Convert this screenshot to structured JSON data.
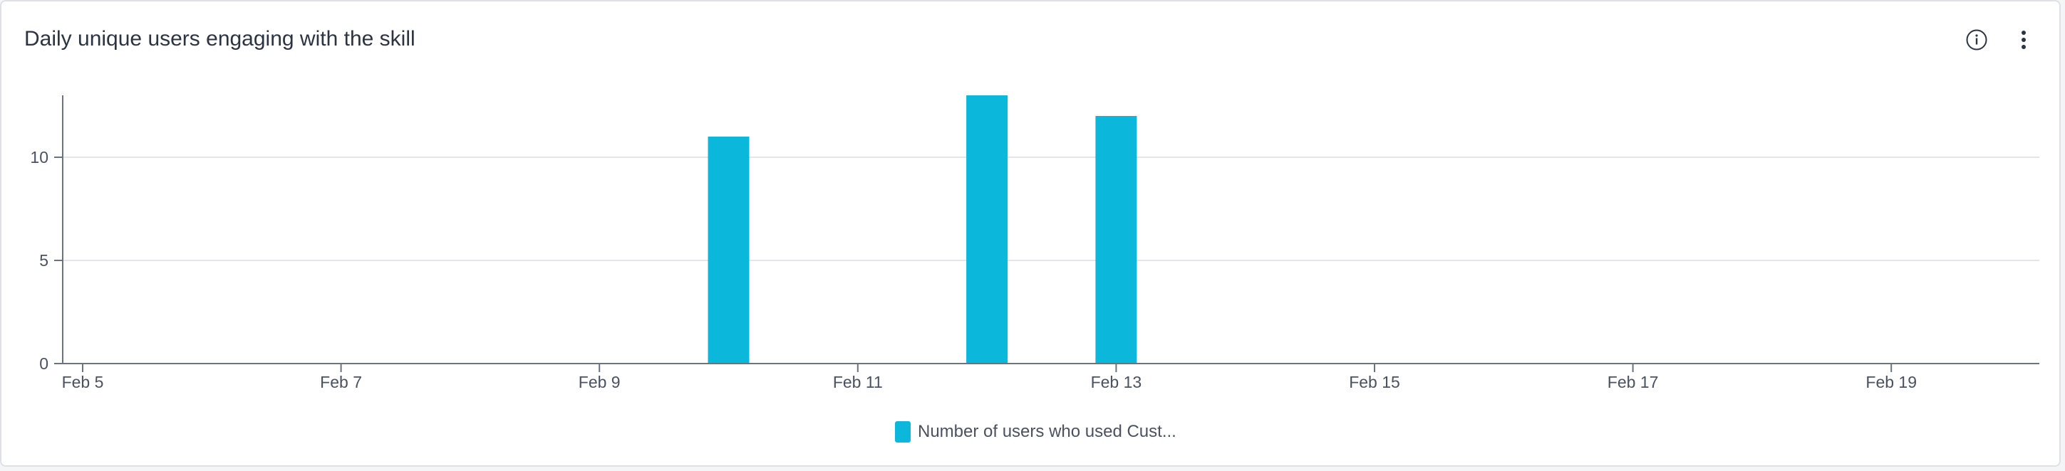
{
  "card": {
    "title": "Daily unique users engaging with the skill"
  },
  "icons": {
    "info": "info-circle-icon",
    "more": "vertical-ellipsis-icon"
  },
  "colors": {
    "bar": "#0bb8dc",
    "axis": "#6b7280",
    "grid": "#e3e5e8"
  },
  "chart_data": {
    "type": "bar",
    "title": "Daily unique users engaging with the skill",
    "xlabel": "",
    "ylabel": "",
    "x_tick_labels": [
      "Feb 5",
      "Feb 7",
      "Feb 9",
      "Feb 11",
      "Feb 13",
      "Feb 15",
      "Feb 17",
      "Feb 19"
    ],
    "y_ticks": [
      0,
      5,
      10
    ],
    "ylim": [
      0,
      13
    ],
    "xlim": [
      "Feb 5",
      "Feb 20"
    ],
    "grid": true,
    "legend_position": "bottom-center",
    "series": [
      {
        "name": "Number of users who used Cust...",
        "points": [
          {
            "x": "Feb 10",
            "y": 11
          },
          {
            "x": "Feb 12",
            "y": 13
          },
          {
            "x": "Feb 13",
            "y": 12
          }
        ]
      }
    ]
  }
}
